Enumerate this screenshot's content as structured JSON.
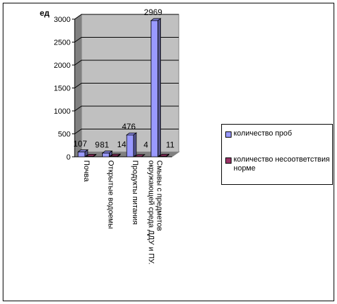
{
  "chart_data": {
    "type": "bar",
    "ylabel": "ед",
    "ylim": [
      0,
      3000
    ],
    "yticks": [
      "0",
      "500",
      "1000",
      "1500",
      "2000",
      "2500",
      "3000"
    ],
    "categories": [
      "Почва",
      "Открытые водоемы",
      "Продукты питания",
      "Смывы с предметов окружающей среда ДДУ и ПУ."
    ],
    "series": [
      {
        "name": "количество проб",
        "values": [
          107,
          81,
          476,
          2969
        ],
        "color": "#9999ff"
      },
      {
        "name": "количество несоответствия норме",
        "values": [
          9,
          14,
          4,
          11
        ],
        "color": "#993366"
      }
    ],
    "grid": true,
    "legend_position": "right"
  }
}
